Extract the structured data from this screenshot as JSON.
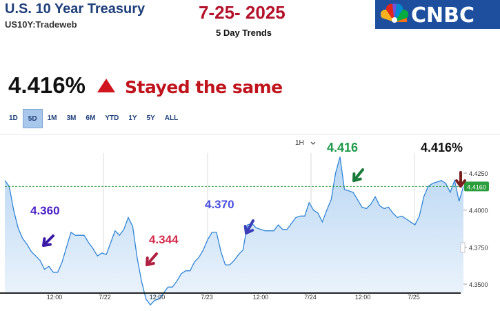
{
  "header": {
    "title": "U.S. 10 Year Treasury",
    "subtitle": "US10Y:Tradeweb",
    "date": "7-25- 2025",
    "trend_label": "5 Day Trends",
    "logo_text": "CNBC"
  },
  "quote": {
    "price": "4.416%",
    "direction_icon": "triangle-up-icon",
    "status": "Stayed the same"
  },
  "tabs": [
    "1D",
    "5D",
    "1M",
    "3M",
    "6M",
    "YTD",
    "1Y",
    "5Y",
    "ALL"
  ],
  "active_tab": "5D",
  "resolution": "1H",
  "colors": {
    "brand_blue": "#1f3f7a",
    "title_red": "#b3122a",
    "status_red": "#c0141d",
    "up_red": "#d0151e",
    "line_blue": "#2f84d6",
    "fill_blue": "#cfe3f7",
    "last_price_green": "#2a9d3c"
  },
  "annotations": [
    {
      "text": "4.360",
      "color": "#4a1fc7"
    },
    {
      "text": "4.344",
      "color": "#d22b4a"
    },
    {
      "text": "4.370",
      "color": "#4a4fe0"
    },
    {
      "text": "4.416",
      "color": "#1e9a4a"
    },
    {
      "text": "4.416%",
      "color": "#111111"
    }
  ],
  "chart_data": {
    "type": "area",
    "ylim": [
      4.325,
      4.44
    ],
    "y_ticks": [
      "4.3500",
      "4.3750",
      "4.4000",
      "4.4250"
    ],
    "x_tick_labels": [
      "12:00",
      "7/22",
      "12:00",
      "7/23",
      "12:00",
      "7/24",
      "12:00",
      "7/25"
    ],
    "last_price": 4.416,
    "last_price_label": "4.4160",
    "series": [
      {
        "values": [
          4.42,
          4.416,
          4.4,
          4.388,
          4.381,
          4.377,
          4.372,
          4.369,
          4.366,
          4.36,
          4.362,
          4.358,
          4.358,
          4.365,
          4.375,
          4.385,
          4.383,
          4.383,
          4.383,
          4.378,
          4.374,
          4.369,
          4.371,
          4.37,
          4.378,
          4.386,
          4.383,
          4.387,
          4.395,
          4.389,
          4.368,
          4.352,
          4.34,
          4.336,
          4.339,
          4.34,
          4.344,
          4.348,
          4.348,
          4.352,
          4.357,
          4.359,
          4.359,
          4.365,
          4.368,
          4.373,
          4.38,
          4.385,
          4.385,
          4.372,
          4.363,
          4.363,
          4.366,
          4.37,
          4.373,
          4.39,
          4.391,
          4.388,
          4.387,
          4.386,
          4.386,
          4.386,
          4.39,
          4.387,
          4.387,
          4.391,
          4.395,
          4.396,
          4.396,
          4.405,
          4.4,
          4.398,
          4.392,
          4.4,
          4.407,
          4.425,
          4.436,
          4.414,
          4.413,
          4.412,
          4.407,
          4.402,
          4.401,
          4.404,
          4.409,
          4.403,
          4.401,
          4.402,
          4.398,
          4.395,
          4.396,
          4.394,
          4.392,
          4.39,
          4.396,
          4.409,
          4.416,
          4.418,
          4.419,
          4.42,
          4.418,
          4.412,
          4.42,
          4.406,
          4.416
        ]
      }
    ]
  }
}
